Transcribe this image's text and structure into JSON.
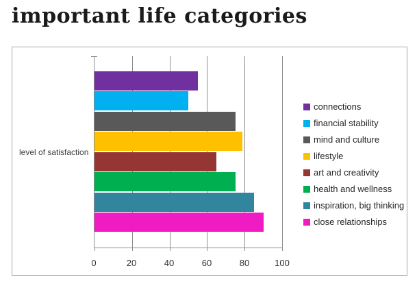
{
  "title": "important life categories",
  "chart_data": {
    "type": "bar",
    "orientation": "horizontal",
    "title": "important life categories",
    "category_axis_label": "level of satisfaction",
    "categories": [
      "connections",
      "financial stability",
      "mind and culture",
      "lifestyle",
      "art and creativity",
      "health and wellness",
      "inspiration, big thinking",
      "close relationships"
    ],
    "values": [
      55,
      50,
      75,
      79,
      65,
      75,
      85,
      90
    ],
    "colors": [
      "#7030A0",
      "#00B0F0",
      "#595959",
      "#FFC000",
      "#963634",
      "#00B050",
      "#31859C",
      "#F01CC3"
    ],
    "xlim": [
      0,
      100
    ],
    "x_ticks": [
      0,
      20,
      40,
      60,
      80,
      100
    ],
    "grid": "vertical-major",
    "legend_position": "right",
    "bar_order": "top-to-bottom matches legend order"
  },
  "styles": {
    "grid_color": "#8c8c8c",
    "frame_border_color": "#a6a6a6",
    "title_color": "#1a1a1a",
    "tick_label_color": "#303030",
    "legend_text_color": "#262626",
    "axis_label_color": "#404040",
    "background": "#ffffff"
  }
}
